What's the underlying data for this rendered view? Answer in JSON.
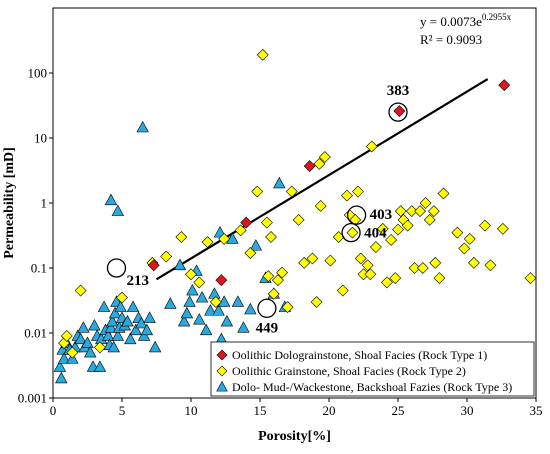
{
  "chart_data": {
    "type": "scatter",
    "xlabel": "Porosity[%]",
    "ylabel": "Permeability [mD]",
    "xlim": [
      0,
      35
    ],
    "ylim": [
      0.001,
      1000
    ],
    "y_scale": "log",
    "x_ticks": [
      "0",
      "5",
      "10",
      "15",
      "20",
      "25",
      "30",
      "35"
    ],
    "y_ticks": [
      "0.001",
      "0.01",
      "0.1",
      "1",
      "10",
      "100"
    ],
    "grid": false,
    "legend_position": "bottom-right",
    "trendline": {
      "equation": "y = 0.0073e",
      "exponent": "0.2955x",
      "r2": "R² = 0.9093",
      "a": 0.0073,
      "b": 0.2955,
      "x_range": [
        7.5,
        31.5
      ]
    },
    "annotations": [
      {
        "label": "383",
        "x": 25.0,
        "y": 25
      },
      {
        "label": "403",
        "x": 22.0,
        "y": 0.65
      },
      {
        "label": "404",
        "x": 21.6,
        "y": 0.35
      },
      {
        "label": "213",
        "x": 4.6,
        "y": 0.1
      },
      {
        "label": "449",
        "x": 15.5,
        "y": 0.024
      }
    ],
    "series": [
      {
        "name": "Oolithic Dolograinstone, Shoal Facies (Rock Type 1)",
        "marker": "diamond",
        "color": "#e0141e",
        "x": [
          7.3,
          12.2,
          14.0,
          18.6,
          25.1,
          32.7
        ],
        "y": [
          0.11,
          0.065,
          0.5,
          3.7,
          26,
          65
        ]
      },
      {
        "name": "Oolithic Grainstone, Shoal Facies (Rock Type 2)",
        "marker": "diamond",
        "color": "#ffff00",
        "x": [
          0.8,
          1.0,
          1.4,
          2.0,
          3.4,
          5.0,
          7.2,
          8.2,
          9.3,
          10.0,
          10.6,
          11.2,
          11.8,
          12.4,
          13.6,
          14.3,
          14.8,
          15.2,
          15.5,
          15.6,
          15.8,
          16.0,
          16.3,
          16.6,
          17.0,
          17.3,
          17.8,
          18.2,
          18.8,
          19.1,
          19.3,
          19.4,
          19.7,
          20.1,
          20.7,
          21.0,
          21.3,
          21.5,
          21.7,
          21.9,
          22.1,
          22.3,
          22.5,
          22.8,
          23.0,
          23.1,
          23.4,
          23.9,
          24.2,
          24.5,
          24.8,
          25.0,
          25.2,
          25.4,
          25.7,
          26.0,
          26.2,
          26.6,
          26.8,
          27.0,
          27.3,
          27.6,
          27.7,
          28.0,
          28.3,
          29.3,
          29.8,
          30.2,
          30.5,
          31.3,
          31.7,
          32.6,
          34.6
        ],
        "y": [
          0.007,
          0.009,
          0.005,
          0.045,
          0.006,
          0.035,
          0.12,
          0.15,
          0.3,
          0.08,
          0.06,
          0.25,
          0.03,
          0.28,
          0.38,
          0.17,
          1.5,
          190,
          0.5,
          0.075,
          0.3,
          0.04,
          0.065,
          0.085,
          0.025,
          1.5,
          0.55,
          0.12,
          0.14,
          0.03,
          4.0,
          0.9,
          5.1,
          0.13,
          0.3,
          0.045,
          1.3,
          0.65,
          0.35,
          0.55,
          1.5,
          0.14,
          0.08,
          0.11,
          0.08,
          7.4,
          0.21,
          0.4,
          0.06,
          0.27,
          0.07,
          0.39,
          0.75,
          0.55,
          0.45,
          0.75,
          0.1,
          0.75,
          0.1,
          1.0,
          0.55,
          0.75,
          0.12,
          0.07,
          1.4,
          0.35,
          0.2,
          0.28,
          0.12,
          0.45,
          0.11,
          0.4,
          0.07
        ]
      },
      {
        "name": "Dolo- Mud-/Wackestone, Backshoal Fazies (Rock Type 3)",
        "marker": "triangle",
        "color": "#29a9e0",
        "x": [
          0.5,
          0.6,
          0.7,
          0.8,
          1.0,
          1.2,
          1.4,
          1.6,
          1.8,
          2.0,
          2.2,
          2.3,
          2.5,
          2.7,
          2.9,
          3.0,
          3.2,
          3.4,
          3.5,
          3.7,
          3.8,
          4.0,
          4.1,
          4.2,
          4.3,
          4.4,
          4.5,
          4.6,
          4.7,
          4.8,
          4.9,
          5.0,
          5.2,
          5.4,
          5.6,
          5.8,
          6.0,
          6.2,
          6.4,
          6.6,
          6.8,
          7.0,
          7.4,
          8.5,
          9.2,
          9.5,
          9.7,
          9.9,
          10.1,
          10.4,
          10.6,
          10.8,
          11.1,
          11.4,
          11.7,
          12.0,
          12.2,
          12.4,
          12.6,
          13.0,
          13.4,
          13.8,
          14.3,
          14.7,
          15.4,
          16.0,
          16.4,
          16.8,
          4.2,
          4.7,
          6.5,
          12.1
        ],
        "y": [
          0.003,
          0.002,
          0.0055,
          0.004,
          0.007,
          0.0055,
          0.004,
          0.006,
          0.009,
          0.008,
          0.012,
          0.006,
          0.007,
          0.005,
          0.003,
          0.013,
          0.009,
          0.003,
          0.008,
          0.025,
          0.011,
          0.009,
          0.0065,
          0.012,
          0.015,
          0.006,
          0.02,
          0.03,
          0.009,
          0.012,
          0.025,
          0.017,
          0.013,
          0.015,
          0.008,
          0.025,
          0.011,
          0.017,
          0.014,
          0.009,
          0.011,
          0.017,
          0.006,
          0.028,
          0.11,
          0.015,
          0.02,
          0.03,
          0.045,
          0.09,
          0.016,
          0.035,
          0.011,
          0.022,
          0.04,
          0.022,
          0.008,
          0.03,
          0.015,
          0.28,
          0.03,
          0.012,
          0.023,
          0.22,
          0.07,
          0.04,
          2.0,
          0.025,
          1.1,
          0.75,
          14.5,
          0.35
        ]
      }
    ]
  }
}
